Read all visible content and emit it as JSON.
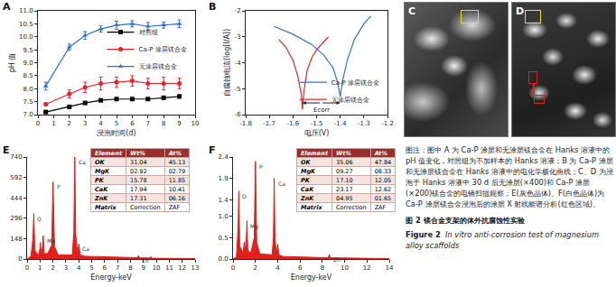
{
  "chart_data": [
    {
      "label": "A",
      "type": "line",
      "x_label": "浸泡时间(d)",
      "y_label": "pH 值",
      "x": [
        0.5,
        2,
        3,
        4,
        5,
        6,
        7,
        8,
        9
      ],
      "series": [
        {
          "name": "对照组",
          "color": "#000000",
          "marker": "square",
          "line_style": "solid",
          "values": [
            7.1,
            7.3,
            7.45,
            7.55,
            7.6,
            7.6,
            7.6,
            7.65,
            7.7
          ],
          "error": [
            0.03,
            0.05,
            0.05,
            0.04,
            0.05,
            0.04,
            0.04,
            0.05,
            0.06
          ]
        },
        {
          "name": "Ca-P 涂层镁合金",
          "color": "#e8202a",
          "marker": "circle",
          "line_style": "solid",
          "values": [
            7.4,
            7.8,
            8.05,
            8.2,
            8.25,
            8.3,
            8.2,
            8.2,
            8.2
          ],
          "error": [
            0.05,
            0.15,
            0.2,
            0.25,
            0.2,
            0.2,
            0.2,
            0.25,
            0.2
          ]
        },
        {
          "name": "无涂层镁合金",
          "color": "#2a6fdb",
          "marker": "triangle-up",
          "line_style": "solid",
          "values": [
            8.1,
            9.6,
            10.05,
            10.3,
            10.45,
            10.5,
            10.4,
            10.45,
            10.5
          ],
          "error": [
            0.15,
            0.12,
            0.15,
            0.12,
            0.15,
            0.12,
            0.15,
            0.12,
            0.15
          ]
        }
      ],
      "xlim": [
        0,
        10
      ],
      "xticks": [
        0,
        1,
        2,
        3,
        4,
        5,
        6,
        7,
        8,
        9,
        10
      ],
      "ylim": [
        7,
        11
      ],
      "yticks": [
        {
          "value": 7,
          "label": "7.0"
        },
        {
          "value": 7.5,
          "label": "7.5"
        },
        {
          "value": 8,
          "label": "8.0"
        },
        {
          "value": 8.5,
          "label": "8.5"
        },
        {
          "value": 9,
          "label": "9.0"
        },
        {
          "value": 9.5,
          "label": "9.5"
        },
        {
          "value": 10,
          "label": "10.0"
        },
        {
          "value": 10.5,
          "label": "10.5"
        },
        {
          "value": 11,
          "label": "11.0"
        }
      ],
      "grid": false,
      "legend": "right"
    },
    {
      "label": "B",
      "type": "line",
      "x_label": "电压(V)",
      "y_label": "自腐蚀电流(log[I/A])",
      "series": [
        {
          "name": "Ca-P 涂层镁合金",
          "color": "#3b6fd8",
          "line_style": "solid",
          "x": [
            -1.68,
            -1.6,
            -1.52,
            -1.47,
            -1.43,
            -1.41,
            -1.4,
            -1.39,
            -1.37,
            -1.34,
            -1.3,
            -1.27
          ],
          "values": [
            -2.6,
            -2.9,
            -3.3,
            -3.7,
            -4.2,
            -4.8,
            -5.3,
            -4.7,
            -3.9,
            -3.1,
            -2.5,
            -2.2
          ]
        },
        {
          "name": "无涂层镁合金",
          "color": "#e3242b",
          "line_style": "solid",
          "x": [
            -1.66,
            -1.63,
            -1.6,
            -1.58,
            -1.565,
            -1.56,
            -1.555,
            -1.54,
            -1.52,
            -1.5,
            -1.47,
            -1.45
          ],
          "values": [
            -3.1,
            -3.4,
            -3.9,
            -4.5,
            -5.2,
            -5.8,
            -5.2,
            -4.3,
            -3.8,
            -3.5,
            -3.2,
            -3.0
          ]
        }
      ],
      "annotations": [
        {
          "text": "Ecorr",
          "x": [
            -1.56,
            -1.4
          ]
        }
      ],
      "xlim": [
        -1.8,
        -1.2
      ],
      "xticks": [
        -1.8,
        -1.7,
        -1.6,
        -1.5,
        -1.4,
        -1.3,
        -1.2
      ],
      "ylim": [
        -6,
        -2
      ],
      "yticks": [
        -6,
        -5,
        -4,
        -3,
        -2
      ],
      "grid": false,
      "legend": "bottom-right"
    },
    {
      "label": "E",
      "type": "area",
      "x_label": "Energy-keV",
      "color": "#e0201b",
      "x": [
        0,
        0.3,
        0.45,
        0.52,
        0.6,
        0.9,
        1.0,
        1.02,
        1.1,
        1.18,
        1.25,
        1.32,
        1.6,
        1.9,
        2.01,
        2.12,
        2.4,
        3.5,
        3.62,
        3.69,
        3.76,
        3.9,
        4.01,
        4.1,
        4.5,
        8.5,
        8.63,
        8.7,
        9.5,
        9.57,
        9.65,
        10.5,
        13
      ],
      "values": [
        0,
        20,
        150,
        330,
        60,
        30,
        80,
        120,
        40,
        80,
        170,
        40,
        40,
        100,
        560,
        90,
        30,
        30,
        200,
        740,
        180,
        50,
        110,
        30,
        20,
        10,
        25,
        8,
        8,
        18,
        6,
        5,
        3
      ],
      "peaks": [
        {
          "label": "O",
          "x": 0.52,
          "y": 330
        },
        {
          "label": "Mg",
          "x": 1.25,
          "y": 170
        },
        {
          "label": "P",
          "x": 2.01,
          "y": 560
        },
        {
          "label": "Ca",
          "x": 3.69,
          "y": 740
        },
        {
          "label": "Ca",
          "x": 4.01,
          "y": 110
        },
        {
          "label": "Zn",
          "x": 8.63,
          "y": 25
        }
      ],
      "xlim": [
        0,
        13
      ],
      "xticks": [
        0,
        1,
        2,
        3,
        4,
        5,
        6,
        7,
        8,
        9,
        10,
        11,
        12,
        13
      ],
      "ylim": [
        0,
        740
      ],
      "yticks": [
        0,
        148,
        296,
        444,
        592,
        740
      ],
      "grid": false,
      "table": {
        "header": [
          "Element",
          "Wt%",
          "At%"
        ],
        "rows": [
          [
            "OK",
            "31.04",
            "45.13"
          ],
          [
            "MgK",
            "02.92",
            "02.79"
          ],
          [
            "PK",
            "15.78",
            "11.85"
          ],
          [
            "CaK",
            "17.94",
            "10.41"
          ],
          [
            "ZnK",
            "17.31",
            "06.16"
          ],
          [
            "Matrix",
            "Correction",
            "ZAF"
          ]
        ]
      }
    },
    {
      "label": "F",
      "type": "area",
      "x_label": "Energy-keV",
      "color": "#e0201b",
      "x": [
        0,
        0.3,
        0.45,
        0.52,
        0.6,
        0.9,
        1.02,
        1.1,
        1.18,
        1.25,
        1.32,
        1.6,
        1.9,
        2.01,
        2.12,
        2.4,
        3.5,
        3.62,
        3.69,
        3.76,
        3.9,
        4.01,
        4.1,
        4.5,
        8.5,
        8.63,
        8.7,
        14
      ],
      "values": [
        0,
        0.05,
        0.7,
        1.6,
        0.3,
        0.15,
        0.4,
        0.2,
        0.4,
        0.9,
        0.2,
        0.15,
        0.5,
        2.3,
        0.4,
        0.12,
        0.1,
        0.5,
        1.9,
        0.45,
        0.15,
        0.35,
        0.1,
        0.06,
        0.03,
        0.1,
        0.03,
        0.01
      ],
      "peaks": [
        {
          "label": "O",
          "x": 0.52,
          "y": 1.6
        },
        {
          "label": "Mg",
          "x": 1.25,
          "y": 0.9
        },
        {
          "label": "P",
          "x": 2.01,
          "y": 2.3
        },
        {
          "label": "Ca",
          "x": 3.69,
          "y": 1.9
        },
        {
          "label": "Zn",
          "x": 8.63,
          "y": 0.1
        }
      ],
      "xlim": [
        0,
        14
      ],
      "xticks": [
        0,
        2,
        4,
        6,
        8,
        10,
        12,
        14
      ],
      "ylim": [
        0,
        2.4
      ],
      "yticks": [
        {
          "value": 0,
          "label": "0.0"
        },
        {
          "value": 0.5,
          "label": "0.5"
        },
        {
          "value": 1,
          "label": "1.0"
        },
        1.4,
        1.9,
        2.4
      ],
      "grid": false,
      "table": {
        "header": [
          "Element",
          "Wt%",
          "At%"
        ],
        "rows": [
          [
            "OK",
            "35.06",
            "47.84"
          ],
          [
            "MgK",
            "09.27",
            "08.33"
          ],
          [
            "PK",
            "17.10",
            "12.05"
          ],
          [
            "CaK",
            "23.17",
            "12.62"
          ],
          [
            "ZnK",
            "04.95",
            "01.65"
          ],
          [
            "Matrix",
            "Correction",
            "ZAF"
          ]
        ]
      }
    }
  ],
  "images": [
    {
      "label": "C"
    },
    {
      "label": "D"
    }
  ],
  "caption": {
    "note": "图注：图中 A 为 Ca-P 涂层和无涂层镁合金在 Hanks 溶液中的 pH 值变化，对照组为不加样本的 Hanks 溶液；B 为 Ca-P 涂层和无涂层镁合金在 Hanks 溶液中的电化学极化曲线；C、D 为浸泡于 Hanks 溶液中 30 d 后无涂层(×400)和 Ca-P 涂层(×200)镁合金的电镜扫描观察；E(灰色晶体)、F(白色晶体)为 Ca-P 涂层镁合金浸泡后的涂层 X 射线能谱分析(红色区域)。",
    "title_zh": "图 2   镁合金支架的体外抗腐蚀性实验",
    "title_en_prefix": "Figure 2",
    "title_en": "In vitro anti-corrosion test of magnesium alloy scaffolds"
  }
}
